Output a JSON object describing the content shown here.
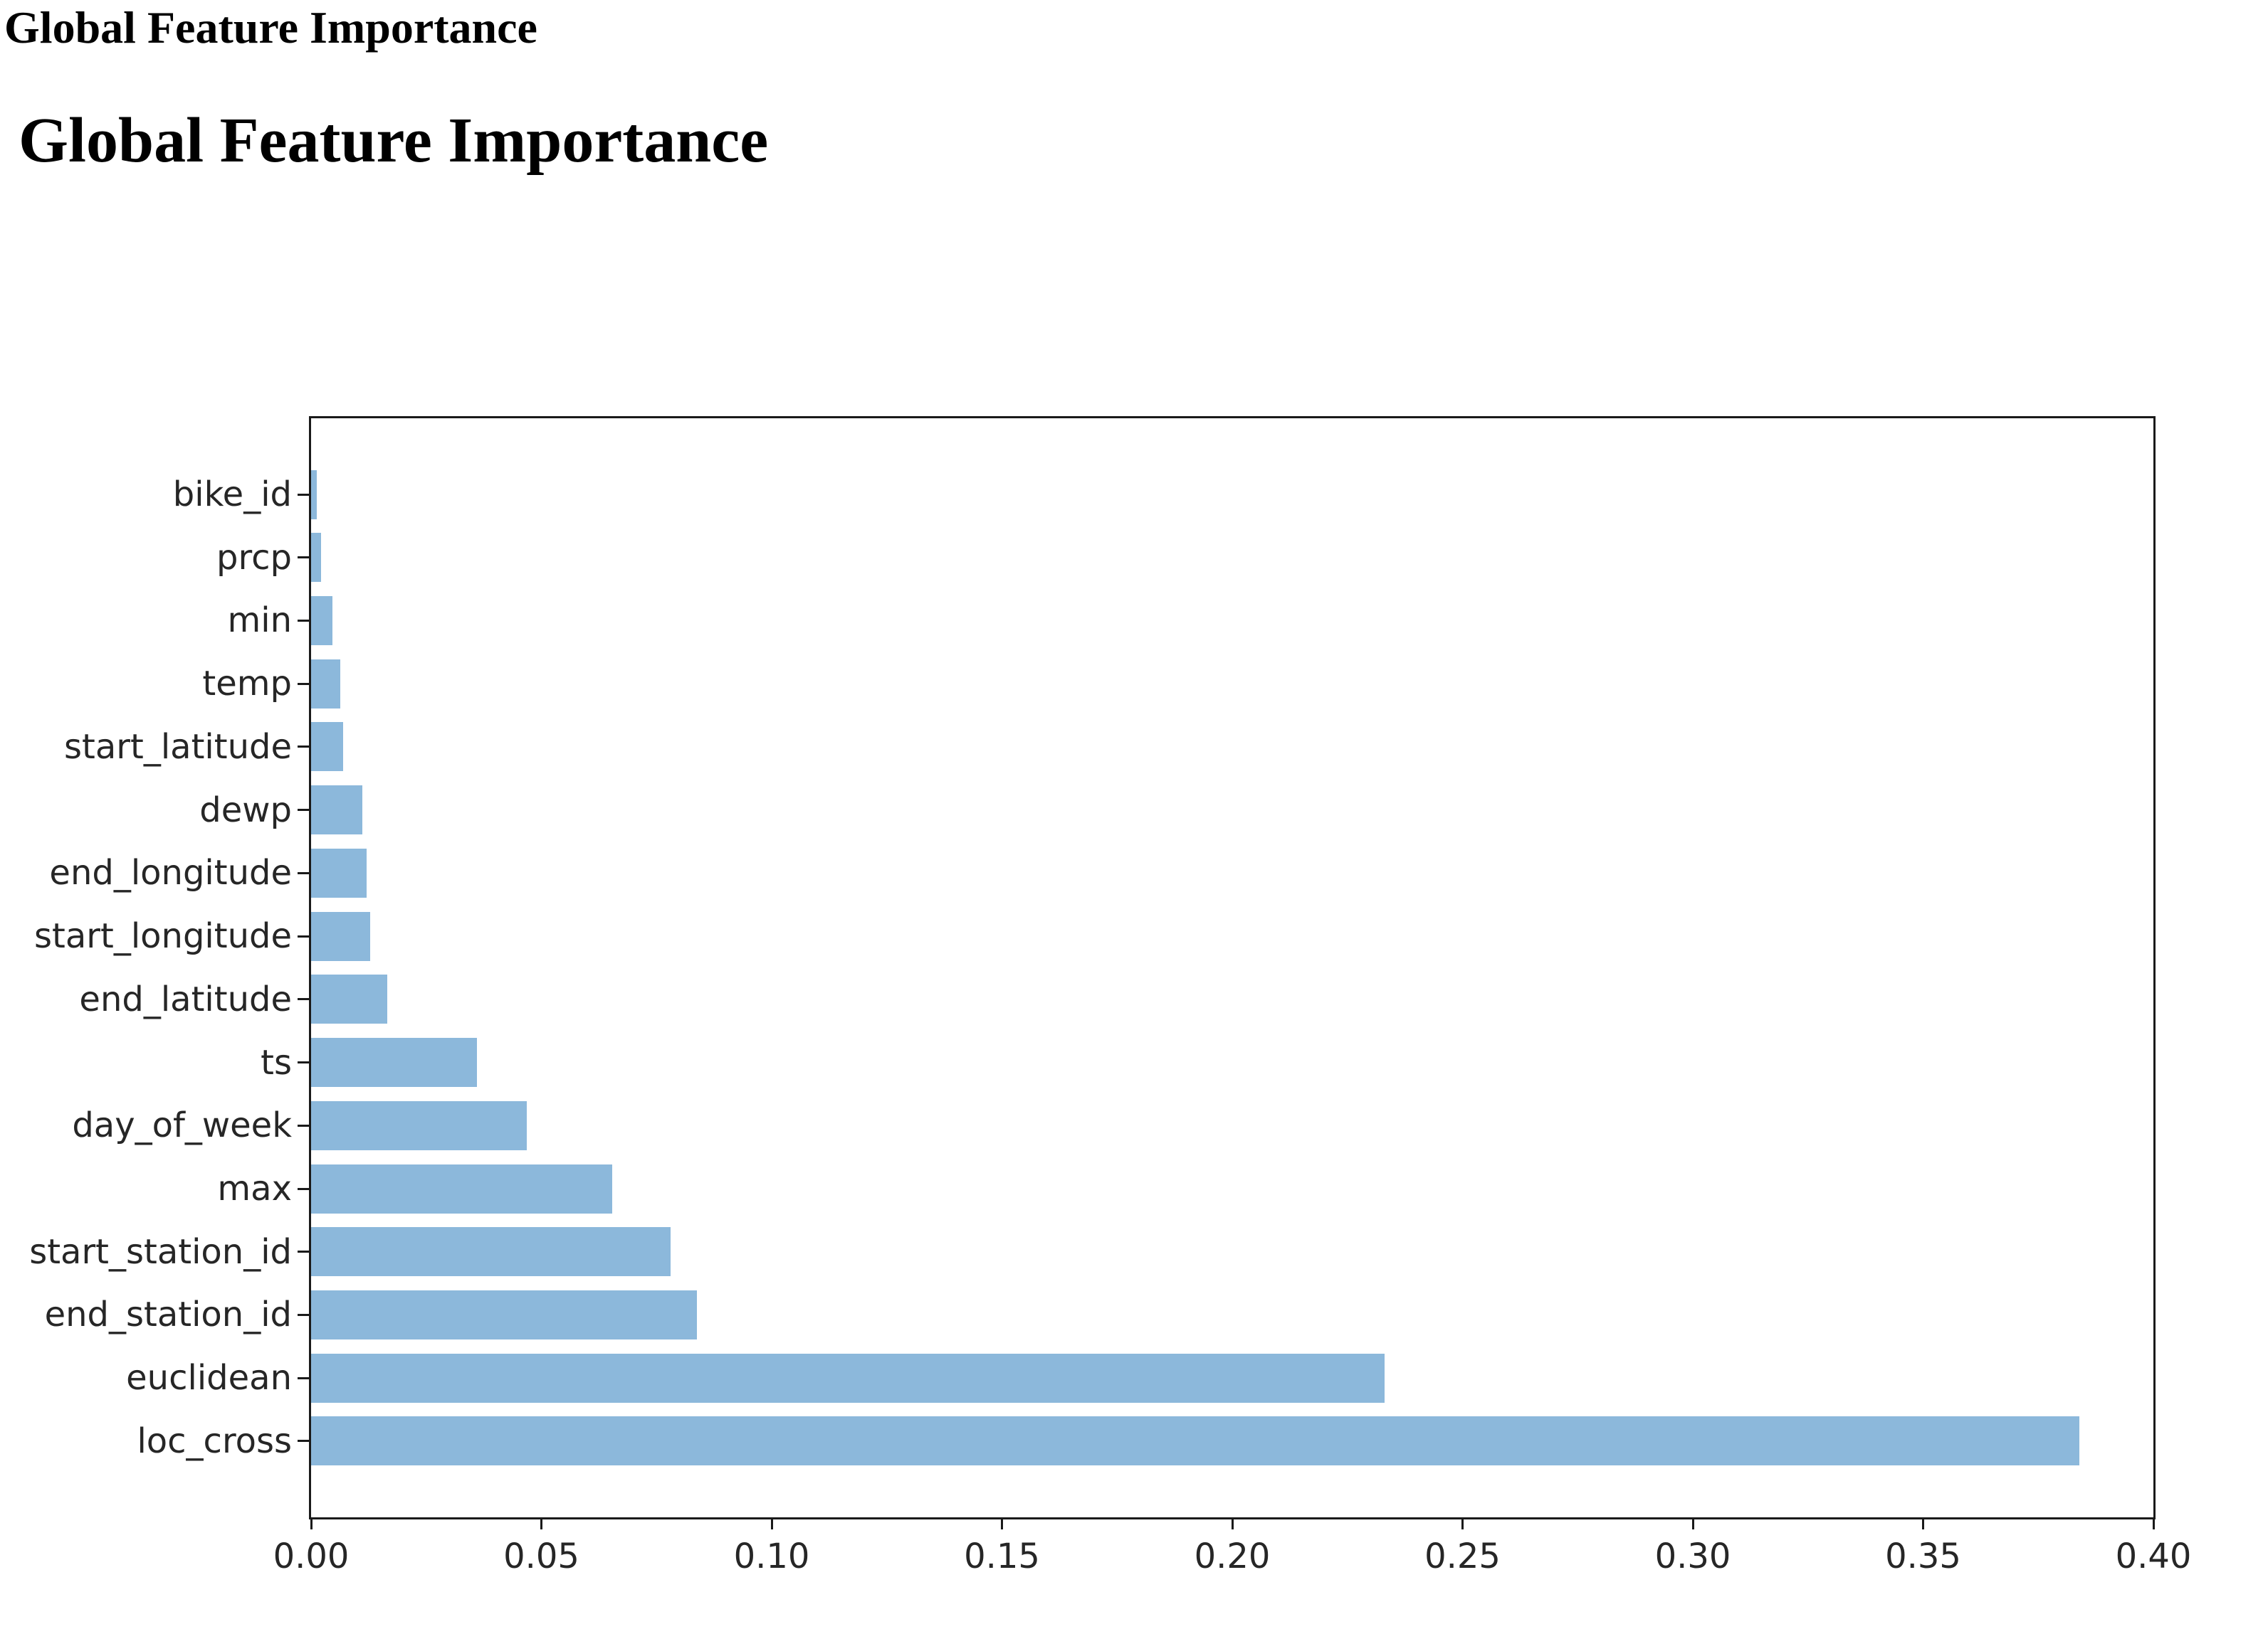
{
  "page": {
    "small_title": "Global Feature Importance",
    "large_title": "Global Feature Importance"
  },
  "chart_data": {
    "type": "bar",
    "orientation": "horizontal",
    "title": "",
    "xlabel": "",
    "ylabel": "",
    "grid": false,
    "legend": false,
    "bar_color": "#8CB8DB",
    "axis_color": "#1a1a1a",
    "tick_label_color": "#262626",
    "xlim": [
      0,
      0.4
    ],
    "x_tick_labels": [
      "0.00",
      "0.05",
      "0.10",
      "0.15",
      "0.20",
      "0.25",
      "0.30",
      "0.35",
      "0.40"
    ],
    "x_tick_values": [
      0.0,
      0.05,
      0.1,
      0.15,
      0.2,
      0.25,
      0.3,
      0.35,
      0.4
    ],
    "bars_top_to_bottom": [
      {
        "label": "bike_id",
        "value": 0.0012
      },
      {
        "label": "prcp",
        "value": 0.0022
      },
      {
        "label": "min",
        "value": 0.0046
      },
      {
        "label": "temp",
        "value": 0.0064
      },
      {
        "label": "start_latitude",
        "value": 0.007
      },
      {
        "label": "dewp",
        "value": 0.0111
      },
      {
        "label": "end_longitude",
        "value": 0.012
      },
      {
        "label": "start_longitude",
        "value": 0.0128
      },
      {
        "label": "end_latitude",
        "value": 0.0166
      },
      {
        "label": "ts",
        "value": 0.036
      },
      {
        "label": "day_of_week",
        "value": 0.0468
      },
      {
        "label": "max",
        "value": 0.0654
      },
      {
        "label": "start_station_id",
        "value": 0.078
      },
      {
        "label": "end_station_id",
        "value": 0.0838
      },
      {
        "label": "euclidean",
        "value": 0.233
      },
      {
        "label": "loc_cross",
        "value": 0.384
      }
    ]
  }
}
